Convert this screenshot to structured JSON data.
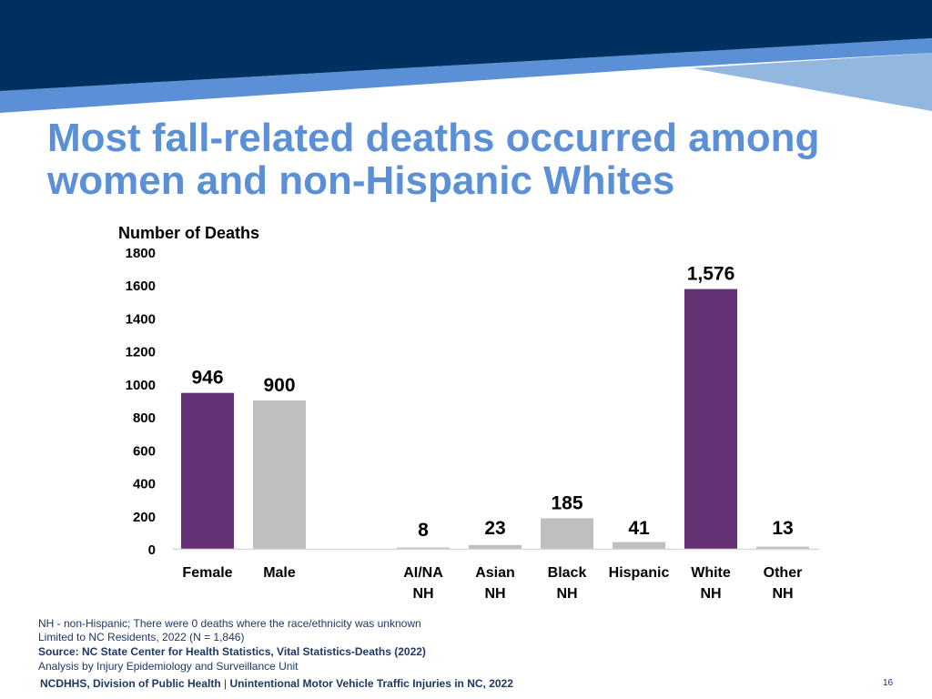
{
  "slide": {
    "title_lines": [
      "Most fall-related deaths occurred among",
      "women and non-Hispanic Whites"
    ],
    "page_number": "16",
    "footer_org": "NCDHHS, Division of Public Health",
    "footer_separator": "|",
    "footer_report": "Unintentional Motor Vehicle Traffic Injuries in NC, 2022"
  },
  "notes": {
    "nh_note": "NH - non-Hispanic; There were 0 deaths where the race/ethnicity was unknown",
    "residents_note": "Limited to NC Residents, 2022 (N = 1,846)",
    "source": "Source: NC State Center for Health Statistics, Vital Statistics-Deaths (2022)",
    "analysis": "Analysis by Injury Epidemiology and Surveillance Unit"
  },
  "colors": {
    "banner_dark": "#003060",
    "banner_stripe": "#5b8fd6",
    "banner_light": "#93b8e0",
    "title": "#5b8fd6",
    "highlight_bar": "#633174",
    "other_bar": "#bfbfbf",
    "footer_text": "#1f3864"
  },
  "chart_data": {
    "type": "bar",
    "ylabel": "Number of Deaths",
    "ylim": [
      0,
      1800
    ],
    "yticks": [
      "1800",
      "1600",
      "1400",
      "1200",
      "1000",
      "800",
      "600",
      "400",
      "200",
      "0"
    ],
    "grid": false,
    "categories": [
      [
        "Female"
      ],
      [
        "Male"
      ],
      [
        "AI/NA",
        "NH"
      ],
      [
        "Asian",
        "NH"
      ],
      [
        "Black",
        "NH"
      ],
      [
        "Hispanic"
      ],
      [
        "White",
        "NH"
      ],
      [
        "Other",
        "NH"
      ]
    ],
    "values": [
      946,
      900,
      8,
      23,
      185,
      41,
      1576,
      13
    ],
    "data_labels": [
      "946",
      "900",
      "8",
      "23",
      "185",
      "41",
      "1,576",
      "13"
    ],
    "highlighted": [
      true,
      false,
      false,
      false,
      false,
      false,
      true,
      false
    ]
  }
}
